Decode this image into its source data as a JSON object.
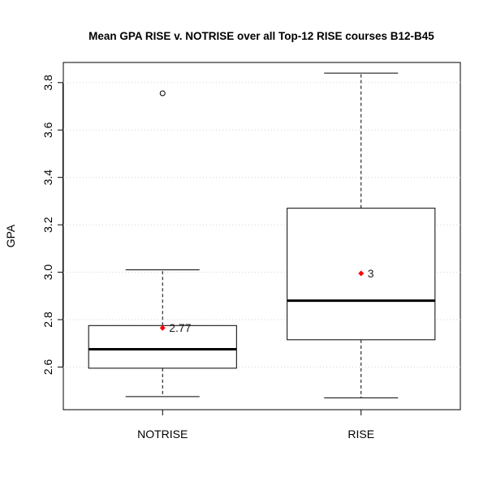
{
  "chart_data": {
    "type": "boxplot",
    "title": "Mean GPA RISE v. NOTRISE over all Top-12 RISE courses B12-B45",
    "xlabel": "",
    "ylabel": "GPA",
    "categories": [
      "NOTRISE",
      "RISE"
    ],
    "ylim": [
      2.42,
      3.885
    ],
    "yticks": [
      2.6,
      2.8,
      3.0,
      3.2,
      3.4,
      3.6,
      3.8
    ],
    "ytick_labels": [
      "2.6",
      "2.8",
      "3.0",
      "3.2",
      "3.4",
      "3.6",
      "3.8"
    ],
    "grid": "horizontal dotted",
    "boxes": [
      {
        "category": "NOTRISE",
        "whisker_low": 2.475,
        "q1": 2.595,
        "median": 2.675,
        "q3": 2.775,
        "whisker_high": 3.01,
        "outliers": [
          3.755
        ],
        "mean": 2.765,
        "mean_label": "2.77"
      },
      {
        "category": "RISE",
        "whisker_low": 2.47,
        "q1": 2.715,
        "median": 2.88,
        "q3": 3.27,
        "whisker_high": 3.84,
        "outliers": [],
        "mean": 2.995,
        "mean_label": "3"
      }
    ],
    "colors": {
      "mean_marker": "#ff0000",
      "box": "#000000",
      "grid": "#d3d3d3"
    }
  }
}
